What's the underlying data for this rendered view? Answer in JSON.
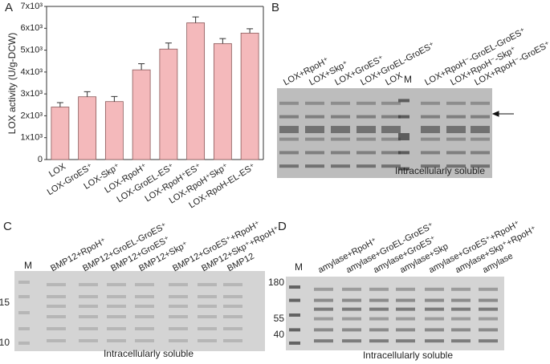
{
  "chart_data": {
    "type": "bar",
    "panel_label": "A",
    "y_label": "LOX activity (U/g-DCW)",
    "categories": [
      "LOX",
      "LOX-GroES⁺",
      "LOX-Skp⁺",
      "LOX-RpoH⁺",
      "LOX-GroEL-ES⁺",
      "LOX-RpoH⁺ES⁺",
      "LOX-RpoH⁺Skp⁺",
      "LOX-RpoH-EL-ES⁺"
    ],
    "values": [
      2400,
      2870,
      2650,
      4100,
      5050,
      6250,
      5300,
      5780
    ],
    "errors": [
      200,
      230,
      230,
      280,
      280,
      270,
      230,
      200
    ],
    "color": "#f4b9bb",
    "ylim": [
      0,
      7000
    ],
    "yticks": [
      0,
      {
        "value": 1000,
        "label": "1x10³"
      },
      {
        "value": 2000,
        "label": "2x10³"
      },
      {
        "value": 3000,
        "label": "3x10³"
      },
      {
        "value": 4000,
        "label": "4x10³"
      },
      {
        "value": 5000,
        "label": "5x10³"
      },
      {
        "value": 6000,
        "label": "6x10³"
      },
      {
        "value": 7000,
        "label": "7x10³"
      }
    ]
  },
  "gels": [
    {
      "panel": "B",
      "lanes": [
        "LOX+RpoH⁺",
        "LOX+Skp⁺",
        "LOX+GroES⁺",
        "LOX+GroEL-GroES⁺",
        "LOX",
        "M",
        "LOX+RpoH⁻-GroEL-GroES⁺",
        "LOX+RpoH⁻-Skp⁺",
        "LOX+RpoH⁻-GroES⁺"
      ],
      "caption": "Intracellularly soluble"
    },
    {
      "panel": "C",
      "lanes": [
        "M",
        "BMP12+RpoH⁺",
        "BMP12+GroEL-GroES⁺",
        "BMP12+GroES⁺",
        "BMP12+Skp⁺",
        "BMP12+GroES⁺+RpoH⁺",
        "BMP12+Skp⁺+RpoH⁺",
        "BMP12"
      ],
      "markers": [
        "15",
        "10"
      ],
      "caption": "Intracellularly soluble"
    },
    {
      "panel": "D",
      "lanes": [
        "M",
        "amylase+RpoH⁺",
        "amylase+GroEL-GroES⁺",
        "amylase+GroES⁺",
        "amylase+Skp",
        "amylase+GroES⁺+RpoH⁺",
        "amylase+Skp⁺+RpoH⁺",
        "amylase"
      ],
      "markers": [
        "180",
        "55",
        "40"
      ],
      "caption": "Intracellularly soluble"
    }
  ]
}
